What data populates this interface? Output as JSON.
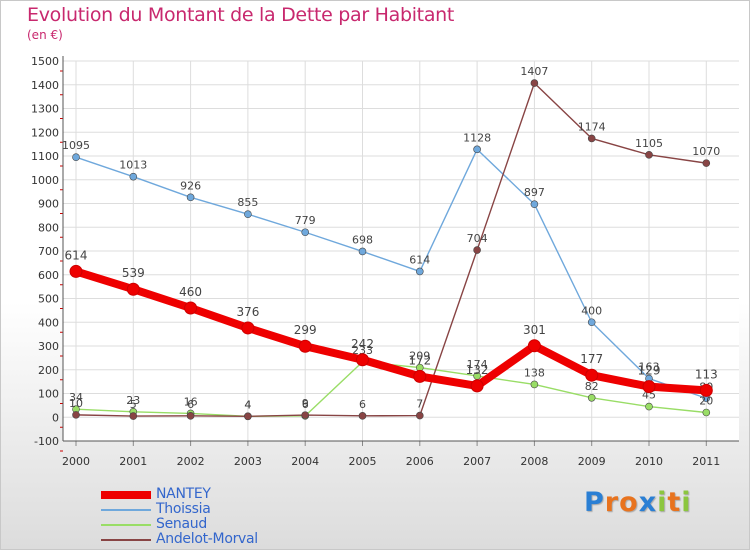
{
  "title": "Evolution du Montant de la Dette par Habitant",
  "unit": "(en €)",
  "brand": {
    "text": "Proxiti",
    "colors": [
      "#2a7fd4",
      "#e8731e",
      "#e8731e",
      "#2a7fd4",
      "#8cc63f",
      "#e8731e",
      "#8cc63f"
    ]
  },
  "chart_data": {
    "type": "line",
    "categories": [
      "2000",
      "2001",
      "2002",
      "2003",
      "2004",
      "2005",
      "2006",
      "2007",
      "2008",
      "2009",
      "2010",
      "2011"
    ],
    "ylim": [
      -100,
      1500
    ],
    "yticks": [
      -100,
      0,
      100,
      200,
      300,
      400,
      500,
      600,
      700,
      800,
      900,
      1000,
      1100,
      1200,
      1300,
      1400,
      1500
    ],
    "grid": true,
    "legend_position": "bottom-left",
    "series": [
      {
        "name": "NANTEY",
        "color": "#ee0000",
        "values": [
          614,
          539,
          460,
          376,
          299,
          242,
          172,
          132,
          301,
          177,
          129,
          113
        ]
      },
      {
        "name": "Thoissia",
        "color": "#6fa8dc",
        "values": [
          1095,
          1013,
          926,
          855,
          779,
          698,
          614,
          1128,
          897,
          400,
          163,
          80
        ]
      },
      {
        "name": "Senaud",
        "color": "#99dd66",
        "values": [
          34,
          23,
          16,
          4,
          6,
          233,
          209,
          174,
          138,
          82,
          45,
          20
        ]
      },
      {
        "name": "Andelot-Morval",
        "color": "#884444",
        "values": [
          10,
          5,
          6,
          4,
          9,
          6,
          7,
          704,
          1407,
          1174,
          1105,
          1070
        ]
      }
    ]
  }
}
